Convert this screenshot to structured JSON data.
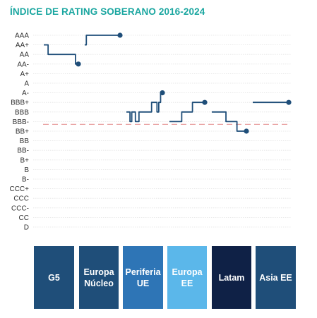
{
  "title": "ÍNDICE DE RATING SOBERANO 2016-2024",
  "chart_data": {
    "type": "line",
    "title": "ÍNDICE DE RATING SOBERANO 2016-2024",
    "y_scale": "ordinal sovereign rating",
    "y_ticks": [
      "AAA",
      "AA+",
      "AA",
      "AA-",
      "A+",
      "A",
      "A-",
      "BBB+",
      "BBB",
      "BBB-",
      "BB+",
      "BB",
      "BB-",
      "B+",
      "B",
      "B-",
      "CCC+",
      "CCC",
      "CCC-",
      "CC",
      "D"
    ],
    "grid": "dotted horizontal",
    "reference_line": {
      "rating": "BBB-",
      "style": "dashed",
      "color": "#e8a0a0"
    },
    "series": [
      {
        "name": "G5",
        "color": "#1f4e79",
        "values": [
          "AA+",
          "AA+",
          "AA+",
          "AA",
          "AA",
          "AA",
          "AA",
          "AA",
          "AA",
          "AA",
          "AA",
          "AA",
          "AA",
          "AA",
          "AA",
          "AA",
          "AA",
          "AA",
          "AA",
          "AA",
          "AA",
          "AA",
          "AA-",
          "AA-",
          "AA-"
        ]
      },
      {
        "name": "Europa Núcleo",
        "color": "#1f4e79",
        "values": [
          "AA+",
          "AAA",
          "AAA",
          "AAA",
          "AAA",
          "AAA",
          "AAA",
          "AAA",
          "AAA",
          "AAA",
          "AAA",
          "AAA",
          "AAA",
          "AAA",
          "AAA",
          "AAA",
          "AAA",
          "AAA",
          "AAA",
          "AAA",
          "AAA",
          "AAA",
          "AAA"
        ]
      },
      {
        "name": "Periferia UE",
        "color": "#1f4e79",
        "values": [
          "BBB",
          "BBB",
          "BBB-",
          "BBB",
          "BBB",
          "BBB-",
          "BBB-",
          "BBB",
          "BBB",
          "BBB",
          "BBB",
          "BBB",
          "BBB",
          "BBB",
          "BBB+",
          "BBB+",
          "BBB+",
          "BBB",
          "BBB+",
          "A-",
          "A-"
        ]
      },
      {
        "name": "Europa EE",
        "color": "#1f4e79",
        "values": [
          "BBB-",
          "BBB-",
          "BBB-",
          "BBB-",
          "BBB-",
          "BBB-",
          "BBB-",
          "BBB-",
          "BBB",
          "BBB",
          "BBB",
          "BBB",
          "BBB",
          "BBB",
          "BBB",
          "BBB+",
          "BBB+",
          "BBB+",
          "BBB+",
          "BBB+",
          "BBB+",
          "BBB+",
          "BBB+",
          "BBB+"
        ]
      },
      {
        "name": "Latam",
        "color": "#1f4e79",
        "values": [
          "BBB",
          "BBB",
          "BBB",
          "BBB",
          "BBB",
          "BBB",
          "BBB",
          "BBB",
          "BBB",
          "BBB-",
          "BBB-",
          "BBB-",
          "BBB-",
          "BBB-",
          "BBB-",
          "BBB-",
          "BB+",
          "BB+",
          "BB+",
          "BB+",
          "BB+",
          "BB+",
          "BB+"
        ]
      },
      {
        "name": "Asia EE",
        "color": "#1f4e79",
        "values": [
          "BBB+",
          "BBB+",
          "BBB+",
          "BBB+",
          "BBB+",
          "BBB+",
          "BBB+",
          "BBB+",
          "BBB+",
          "BBB+",
          "BBB+",
          "BBB+",
          "BBB+",
          "BBB+",
          "BBB+",
          "BBB+",
          "BBB+",
          "BBB+",
          "BBB+",
          "BBB+",
          "BBB+",
          "BBB+",
          "BBB+",
          "BBB+"
        ]
      }
    ]
  },
  "regions": [
    {
      "label": "G5",
      "color": "#1f4e79"
    },
    {
      "label": "Europa\nNúcleo",
      "color": "#1f4e79"
    },
    {
      "label": "Periferia\nUE",
      "color": "#2e75b6"
    },
    {
      "label": "Europa\nEE",
      "color": "#5bb7ea"
    },
    {
      "label": "Latam",
      "color": "#0f2146"
    },
    {
      "label": "Asia EE",
      "color": "#1f4e79"
    }
  ]
}
